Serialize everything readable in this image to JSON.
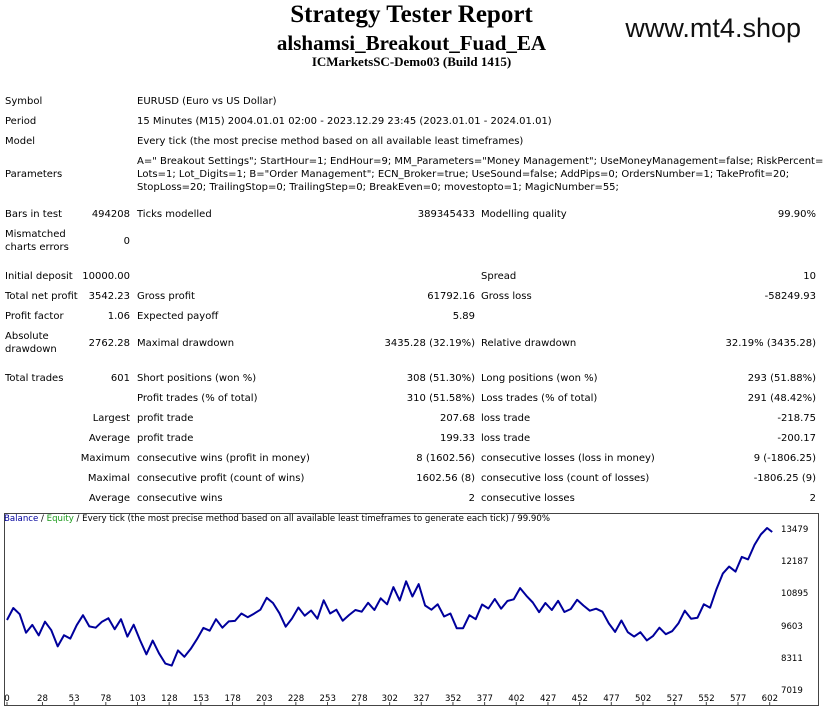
{
  "header": {
    "title": "Strategy Tester Report",
    "ea_name": "alshamsi_Breakout_Fuad_EA",
    "server": "ICMarketsSC-Demo03 (Build 1415)",
    "watermark": "www.mt4.shop"
  },
  "info": {
    "symbol_label": "Symbol",
    "symbol_value": "EURUSD (Euro vs US Dollar)",
    "period_label": "Period",
    "period_value": "15 Minutes (M15) 2004.01.01 02:00 - 2023.12.29 23:45 (2023.01.01 - 2024.01.01)",
    "model_label": "Model",
    "model_value": "Every tick (the most precise method based on all available least timeframes)",
    "parameters_label": "Parameters",
    "parameters_lines": [
      "A=\" Breakout Settings\"; StartHour=1; EndHour=9; MM_Parameters=\"Money Management\"; UseMoneyManagement=false; RiskPercent=10;",
      "Lots=1; Lot_Digits=1; B=\"Order Management\"; ECN_Broker=true; UseSound=false; AddPips=0; OrdersNumber=1; TakeProfit=20;",
      "StopLoss=20; TrailingStop=0; TrailingStep=0; BreakEven=0; movestopto=1; MagicNumber=55;"
    ]
  },
  "stats": {
    "bars_label": "Bars in test",
    "bars_value": "494208",
    "ticks_label": "Ticks modelled",
    "ticks_value": "389345433",
    "quality_label": "Modelling quality",
    "quality_value": "99.90%",
    "mismatch_label_1": "Mismatched",
    "mismatch_label_2": "charts errors",
    "mismatch_value": "0",
    "initial_deposit_label": "Initial deposit",
    "initial_deposit_value": "10000.00",
    "spread_label": "Spread",
    "spread_value": "10",
    "net_profit_label": "Total net profit",
    "net_profit_value": "3542.23",
    "gross_profit_label": "Gross profit",
    "gross_profit_value": "61792.16",
    "gross_loss_label": "Gross loss",
    "gross_loss_value": "-58249.93",
    "profit_factor_label": "Profit factor",
    "profit_factor_value": "1.06",
    "expected_payoff_label": "Expected payoff",
    "expected_payoff_value": "5.89",
    "abs_dd_label_1": "Absolute",
    "abs_dd_label_2": "drawdown",
    "abs_dd_value": "2762.28",
    "max_dd_label": "Maximal drawdown",
    "max_dd_value": "3435.28 (32.19%)",
    "rel_dd_label": "Relative drawdown",
    "rel_dd_value": "32.19% (3435.28)",
    "total_trades_label": "Total trades",
    "total_trades_value": "601",
    "short_label": "Short positions (won %)",
    "short_value": "308 (51.30%)",
    "long_label": "Long positions (won %)",
    "long_value": "293 (51.88%)",
    "profit_trades_label": "Profit trades (% of total)",
    "profit_trades_value": "310 (51.58%)",
    "loss_trades_label": "Loss trades (% of total)",
    "loss_trades_value": "291 (48.42%)",
    "largest_label": "Largest",
    "largest_profit_label": "profit trade",
    "largest_profit_value": "207.68",
    "largest_loss_label": "loss trade",
    "largest_loss_value": "-218.75",
    "average_label": "Average",
    "average_profit_label": "profit trade",
    "average_profit_value": "199.33",
    "average_loss_label": "loss trade",
    "average_loss_value": "-200.17",
    "maximum_label": "Maximum",
    "max_cons_wins_label": "consecutive wins (profit in money)",
    "max_cons_wins_value": "8 (1602.56)",
    "max_cons_losses_label": "consecutive losses (loss in money)",
    "max_cons_losses_value": "9 (-1806.25)",
    "maximal_label": "Maximal",
    "maximal_cons_profit_label": "consecutive profit (count of wins)",
    "maximal_cons_profit_value": "1602.56 (8)",
    "maximal_cons_loss_label": "consecutive loss (count of losses)",
    "maximal_cons_loss_value": "-1806.25 (9)",
    "average2_label": "Average",
    "avg_cons_wins_label": "consecutive wins",
    "avg_cons_wins_value": "2",
    "avg_cons_losses_label": "consecutive losses",
    "avg_cons_losses_value": "2"
  },
  "chart_legend": {
    "balance": "Balance",
    "sep": " / ",
    "equity": "Equity",
    "rest": " / Every tick (the most precise method based on all available least timeframes to generate each tick) / 99.90%"
  },
  "chart_data": {
    "type": "line",
    "series": [
      {
        "name": "Balance",
        "x": [
          0,
          5,
          10,
          15,
          20,
          25,
          30,
          35,
          40,
          45,
          50,
          55,
          60,
          65,
          70,
          75,
          80,
          85,
          90,
          95,
          100,
          105,
          110,
          115,
          120,
          125,
          130,
          135,
          140,
          145,
          150,
          155,
          160,
          165,
          170,
          175,
          180,
          185,
          190,
          195,
          200,
          205,
          210,
          215,
          220,
          225,
          230,
          235,
          240,
          245,
          250,
          255,
          260,
          265,
          270,
          275,
          280,
          285,
          290,
          295,
          300,
          305,
          310,
          315,
          320,
          325,
          330,
          335,
          340,
          345,
          350,
          355,
          360,
          365,
          370,
          375,
          380,
          385,
          390,
          395,
          400,
          405,
          410,
          415,
          420,
          425,
          430,
          435,
          440,
          445,
          450,
          455,
          460,
          465,
          470,
          475,
          480,
          485,
          490,
          495,
          500,
          505,
          510,
          515,
          520,
          525,
          530,
          535,
          540,
          545,
          550,
          555,
          560,
          565,
          570,
          575,
          580,
          585,
          590,
          595,
          600,
          604
        ],
        "y": [
          9870,
          10350,
          10100,
          9360,
          9670,
          9250,
          9800,
          9460,
          8810,
          9260,
          9120,
          9660,
          10060,
          9610,
          9560,
          9800,
          9940,
          9500,
          9900,
          9200,
          9680,
          9060,
          8490,
          9040,
          8530,
          8120,
          8040,
          8650,
          8390,
          8710,
          9100,
          9550,
          9440,
          9900,
          9560,
          9810,
          9830,
          10130,
          9980,
          10120,
          10280,
          10760,
          10550,
          10140,
          9600,
          9930,
          10370,
          10040,
          10250,
          9920,
          10660,
          10130,
          10280,
          9840,
          10070,
          10270,
          10200,
          10560,
          10270,
          10740,
          10500,
          11190,
          10650,
          11420,
          10810,
          11310,
          10450,
          10280,
          10500,
          10010,
          10130,
          9540,
          9540,
          10060,
          9900,
          10490,
          10330,
          10710,
          10320,
          10630,
          10700,
          11150,
          10840,
          10570,
          10180,
          10550,
          10270,
          10640,
          10190,
          10310,
          10680,
          10450,
          10240,
          10320,
          10200,
          9730,
          9390,
          9850,
          9380,
          9200,
          9380,
          9050,
          9230,
          9560,
          9300,
          9420,
          9730,
          10240,
          9920,
          9960,
          10500,
          10360,
          11110,
          11730,
          12010,
          11810,
          12400,
          12300,
          12880,
          13300,
          13560,
          13400
        ]
      }
    ],
    "x_ticks": [
      0,
      28,
      53,
      78,
      103,
      128,
      153,
      178,
      203,
      228,
      253,
      278,
      302,
      327,
      352,
      377,
      402,
      427,
      452,
      477,
      502,
      527,
      552,
      577,
      602
    ],
    "y_ticks": [
      7019,
      8311,
      9603,
      10895,
      12187,
      13479
    ],
    "xlim": [
      0,
      607
    ],
    "ylim": [
      7019,
      13600
    ],
    "line_color": "#00009c",
    "grid": false
  }
}
